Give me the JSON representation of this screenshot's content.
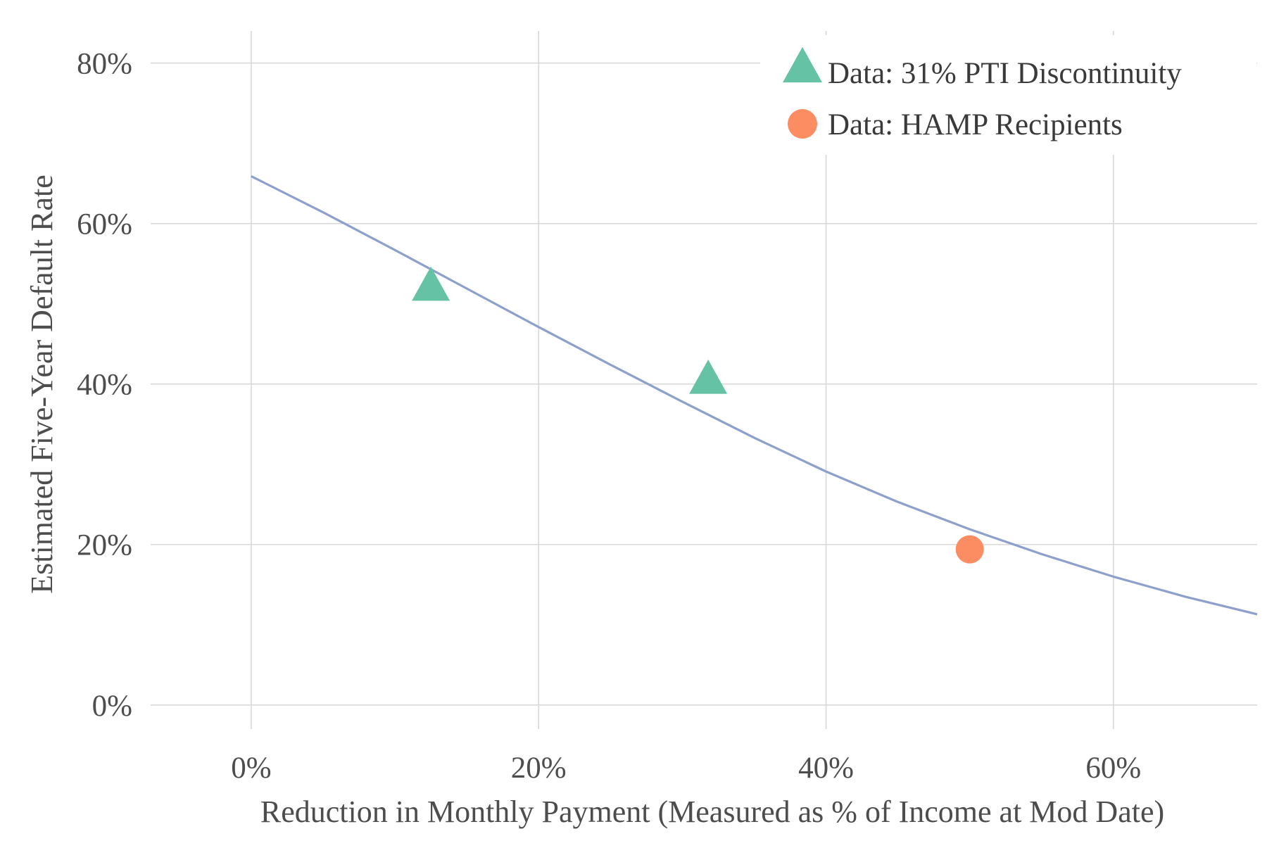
{
  "chart_data": {
    "type": "line",
    "title": "",
    "xlabel": "Reduction in Monthly Payment (Measured as % of Income at Mod Date)",
    "ylabel": "Estimated Five-Year Default Rate",
    "xlim": [
      -0.07,
      0.7
    ],
    "ylim": [
      -0.03,
      0.84
    ],
    "x_ticks": [
      0,
      0.2,
      0.4,
      0.6
    ],
    "x_tick_labels": [
      "0%",
      "20%",
      "40%",
      "60%"
    ],
    "y_ticks": [
      0,
      0.2,
      0.4,
      0.6,
      0.8
    ],
    "y_tick_labels": [
      "0%",
      "20%",
      "40%",
      "60%",
      "80%"
    ],
    "grid": true,
    "legend_position": "top-right",
    "colors": {
      "model_line": "#8da0cb",
      "pti_points": "#66c2a5",
      "hamp_points": "#fc8d62",
      "grid": "#d9d9d9",
      "text": "#4d4d4d"
    },
    "series": [
      {
        "type": "line",
        "x": [
          0.0,
          0.05,
          0.1,
          0.15,
          0.2,
          0.25,
          0.3,
          0.35,
          0.4,
          0.45,
          0.5,
          0.55,
          0.6,
          0.65,
          0.7
        ],
        "y": [
          0.659,
          0.614,
          0.567,
          0.519,
          0.471,
          0.424,
          0.378,
          0.333,
          0.291,
          0.253,
          0.219,
          0.188,
          0.16,
          0.135,
          0.113
        ]
      },
      {
        "name": "Data: 31% PTI Discontinuity",
        "type": "scatter",
        "marker": "triangle",
        "x": [
          0.125,
          0.318
        ],
        "y": [
          0.52,
          0.404
        ]
      },
      {
        "name": "Data: HAMP Recipients",
        "type": "scatter",
        "marker": "circle",
        "x": [
          0.5
        ],
        "y": [
          0.194
        ]
      }
    ],
    "legend": [
      {
        "label": "Data: 31% PTI Discontinuity",
        "marker": "triangle"
      },
      {
        "label": "Data: HAMP Recipients",
        "marker": "circle"
      }
    ]
  }
}
